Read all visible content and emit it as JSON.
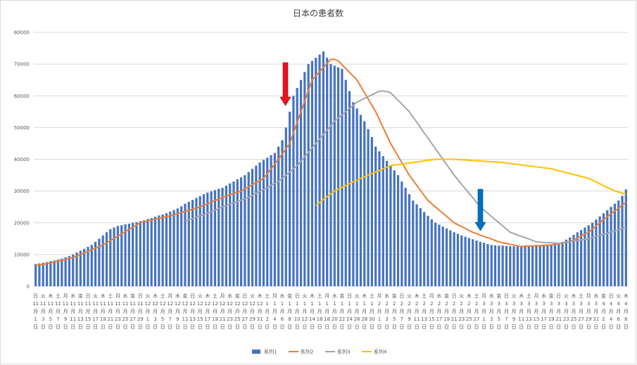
{
  "chart_data": {
    "type": "bar",
    "title": "日本の患者数",
    "categories": [
      "日11月1日",
      null,
      "火11月3日",
      null,
      "木11月5日",
      null,
      "土11月7日",
      null,
      "月11月9日",
      null,
      "水11月11日",
      null,
      "金11月13日",
      null,
      "日11月15日",
      null,
      "火11月17日",
      null,
      "木11月19日",
      null,
      "土11月21日",
      null,
      "月11月23日",
      null,
      "水11月25日",
      null,
      "金11月27日",
      null,
      "日11月29日",
      null,
      "火12月1日",
      null,
      "木12月3日",
      null,
      "土12月5日",
      null,
      "月12月7日",
      null,
      "水12月9日",
      null,
      "金12月11日",
      null,
      "日12月13日",
      null,
      "火12月15日",
      null,
      "木12月17日",
      null,
      "土12月19日",
      null,
      "月12月21日",
      null,
      "水12月23日",
      null,
      "金12月25日",
      null,
      "日12月27日",
      null,
      "火12月29日",
      null,
      "木12月31日",
      null,
      "土1月2日",
      null,
      "月1月4日",
      null,
      "水1月6日",
      null,
      "金1月8日",
      null,
      "日1月10日",
      null,
      "火1月12日",
      null,
      "木1月14日",
      null,
      "土1月16日",
      null,
      "月1月18日",
      null,
      "水1月20日",
      null,
      "金1月22日",
      null,
      "日1月24日",
      null,
      "火1月26日",
      null,
      "木1月28日",
      null,
      "土1月30日",
      null,
      "月2月1日",
      null,
      "水2月3日",
      null,
      "金2月5日",
      null,
      "日2月7日",
      null,
      "火2月9日",
      null,
      "木2月11日",
      null,
      "土2月13日",
      null,
      "月2月15日",
      null,
      "水2月17日",
      null,
      "金2月19日",
      null,
      "日2月21日",
      null,
      "火2月23日",
      null,
      "木2月25日",
      null,
      "土2月27日",
      null,
      "月3月1日",
      null,
      "水3月3日",
      null,
      "金3月5日",
      null,
      "日3月7日",
      null,
      "火3月9日",
      null,
      "木3月11日",
      null,
      "土3月13日",
      null,
      "月3月15日",
      null,
      "水3月17日",
      null,
      "金3月19日",
      null,
      "日3月21日",
      null,
      "火3月23日",
      null,
      "木3月25日",
      null,
      "土3月27日",
      null,
      "月3月29日",
      null,
      "水3月31日",
      null,
      "金4月2日",
      null,
      "日4月4日",
      null,
      "火4月6日",
      null,
      "木4月8日"
    ],
    "series": [
      {
        "name": "系列1",
        "type": "bar",
        "color": "#4472c4",
        "values": [
          7000,
          7200,
          7400,
          7600,
          7900,
          8100,
          8400,
          8700,
          9100,
          9500,
          10000,
          10600,
          11200,
          11800,
          12400,
          13000,
          14000,
          15000,
          16000,
          17000,
          18000,
          18500,
          19000,
          19200,
          19500,
          19700,
          20000,
          20200,
          20500,
          20800,
          21200,
          21500,
          21900,
          22300,
          22600,
          23000,
          23500,
          24000,
          24500,
          25200,
          26000,
          26600,
          27200,
          27800,
          28400,
          29000,
          29500,
          29900,
          30300,
          30700,
          31000,
          31700,
          32400,
          33000,
          33700,
          34300,
          35000,
          36000,
          37000,
          38000,
          39000,
          39800,
          40500,
          41300,
          42000,
          44000,
          46000,
          50000,
          55000,
          60000,
          62500,
          65000,
          67500,
          70000,
          71000,
          72000,
          73000,
          74000,
          72000,
          70000,
          69500,
          69000,
          68500,
          65000,
          61500,
          58000,
          56000,
          54000,
          52000,
          49500,
          47000,
          44000,
          42500,
          41000,
          39500,
          38000,
          36500,
          35000,
          33000,
          31000,
          29000,
          27000,
          25800,
          24600,
          23400,
          22200,
          21100,
          20000,
          19400,
          18800,
          18200,
          17600,
          17000,
          16500,
          16000,
          15600,
          15200,
          14800,
          14400,
          14000,
          13700,
          13300,
          13000,
          12900,
          12800,
          12800,
          12700,
          12600,
          12600,
          12500,
          12500,
          12600,
          12600,
          12700,
          12800,
          12800,
          12900,
          13000,
          13200,
          13500,
          13700,
          14000,
          14700,
          15400,
          16200,
          17000,
          17700,
          18500,
          19200,
          20000,
          21000,
          22000,
          23000,
          24000,
          25000,
          26000,
          27000,
          28500,
          30500
        ]
      },
      {
        "name": "系列2",
        "type": "line",
        "color": "#ed7d31",
        "values": [
          6500,
          6700,
          6900,
          7100,
          7400,
          7600,
          7900,
          8200,
          8400,
          8700,
          9000,
          9500,
          10000,
          10500,
          11000,
          11500,
          12000,
          12500,
          13000,
          13700,
          14400,
          15100,
          15800,
          16500,
          17200,
          17900,
          18600,
          19300,
          20000,
          20300,
          20600,
          20900,
          21100,
          21400,
          21700,
          21900,
          22200,
          22500,
          22900,
          23200,
          23600,
          23900,
          24300,
          24600,
          25000,
          25500,
          26000,
          26500,
          27000,
          27500,
          28000,
          28400,
          28800,
          29200,
          29600,
          30000,
          30700,
          31300,
          32000,
          32700,
          33300,
          34000,
          35500,
          37000,
          38500,
          40000,
          41700,
          43300,
          45000,
          48300,
          51700,
          55000,
          58300,
          61700,
          65000,
          66300,
          67600,
          68900,
          70200,
          71500,
          71500,
          71000,
          69800,
          68600,
          67400,
          66200,
          65000,
          63000,
          61000,
          59000,
          57000,
          55000,
          52500,
          50000,
          47500,
          45000,
          43000,
          41000,
          39000,
          37000,
          35000,
          33400,
          31800,
          30200,
          28600,
          27000,
          26000,
          25000,
          24000,
          23000,
          22000,
          21000,
          20000,
          19400,
          18800,
          18200,
          17600,
          17000,
          16600,
          16100,
          15700,
          15300,
          14900,
          14400,
          14000,
          13700,
          13500,
          13200,
          13000,
          12700,
          12500,
          12600,
          12700,
          12700,
          12800,
          12800,
          12900,
          12900,
          13000,
          13200,
          13400,
          13600,
          13800,
          14000,
          14600,
          15200,
          15800,
          16400,
          17000,
          18000,
          19000,
          20000,
          21000,
          21900,
          22800,
          23700,
          24600,
          25500,
          26500
        ]
      },
      {
        "name": "系列3",
        "type": "line",
        "color": "#a5a5a5",
        "values": [
          null,
          null,
          null,
          null,
          null,
          null,
          null,
          null,
          null,
          null,
          null,
          null,
          null,
          null,
          null,
          null,
          null,
          null,
          null,
          null,
          null,
          null,
          null,
          null,
          null,
          null,
          null,
          null,
          null,
          null,
          null,
          null,
          null,
          null,
          null,
          null,
          null,
          null,
          null,
          null,
          20500,
          20900,
          21300,
          21800,
          22200,
          22600,
          23100,
          23500,
          23900,
          24500,
          25000,
          25400,
          25900,
          26300,
          26700,
          27100,
          27600,
          28000,
          28600,
          29300,
          29900,
          30500,
          31100,
          31800,
          32400,
          33000,
          34000,
          35000,
          36000,
          37000,
          38000,
          39400,
          40800,
          42200,
          43600,
          45000,
          46400,
          47800,
          49200,
          50600,
          52000,
          53000,
          54000,
          55000,
          56000,
          57000,
          58000,
          58600,
          59200,
          59800,
          60300,
          60900,
          61500,
          61500,
          61300,
          61000,
          59800,
          58600,
          57400,
          56200,
          55000,
          53300,
          51700,
          50000,
          48300,
          46700,
          45000,
          43300,
          41700,
          40000,
          38300,
          36700,
          35000,
          33600,
          32100,
          30700,
          29300,
          27900,
          26400,
          25000,
          24000,
          23000,
          22000,
          21000,
          20000,
          19000,
          18000,
          17000,
          16600,
          16100,
          15700,
          15300,
          14900,
          14400,
          14000,
          13900,
          13800,
          13700,
          13700,
          13600,
          13500,
          13700,
          13900,
          14100,
          14300,
          14400,
          14600,
          14800,
          15000,
          15300,
          15700,
          16000,
          16400,
          16700,
          17100,
          17400,
          17800,
          18100,
          18500
        ]
      },
      {
        "name": "系列4",
        "type": "line",
        "color": "#ffc000",
        "values": [
          null,
          null,
          null,
          null,
          null,
          null,
          null,
          null,
          null,
          null,
          null,
          null,
          null,
          null,
          null,
          null,
          null,
          null,
          null,
          null,
          null,
          null,
          null,
          null,
          null,
          null,
          null,
          null,
          null,
          null,
          null,
          null,
          null,
          null,
          null,
          null,
          null,
          null,
          null,
          null,
          null,
          null,
          null,
          null,
          null,
          null,
          null,
          null,
          null,
          null,
          null,
          null,
          null,
          null,
          null,
          null,
          null,
          null,
          null,
          null,
          null,
          null,
          null,
          null,
          null,
          null,
          null,
          null,
          null,
          null,
          null,
          null,
          null,
          null,
          null,
          25500,
          26400,
          27300,
          28200,
          29100,
          30000,
          30600,
          31100,
          31700,
          32300,
          32900,
          33400,
          34000,
          34500,
          35000,
          35500,
          36000,
          36500,
          37000,
          37500,
          38000,
          38200,
          38300,
          38500,
          38700,
          38800,
          39000,
          39200,
          39300,
          39500,
          39700,
          39800,
          40000,
          40000,
          40000,
          40000,
          40000,
          40000,
          39900,
          39800,
          39800,
          39700,
          39600,
          39500,
          39500,
          39400,
          39300,
          39200,
          39200,
          39100,
          39000,
          38800,
          38700,
          38500,
          38400,
          38200,
          38100,
          37900,
          37800,
          37600,
          37500,
          37300,
          37200,
          37000,
          36700,
          36400,
          36100,
          35800,
          35500,
          35200,
          34900,
          34600,
          34300,
          34000,
          33400,
          32900,
          32300,
          31700,
          31100,
          30600,
          30000,
          29700,
          29300,
          29000
        ]
      }
    ],
    "ylim": [
      0,
      80000
    ],
    "yticks": [
      0,
      10000,
      20000,
      30000,
      40000,
      50000,
      60000,
      70000,
      80000
    ],
    "grid": true,
    "legend": "bottom"
  }
}
